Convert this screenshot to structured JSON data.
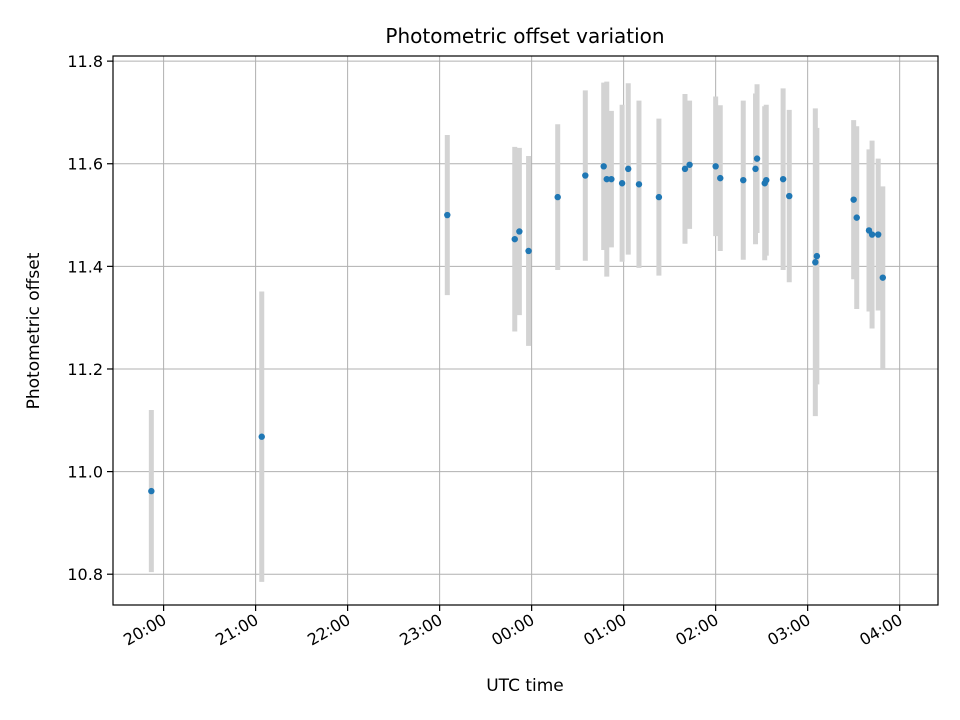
{
  "chart_data": {
    "type": "scatter",
    "title": "Photometric offset variation",
    "xlabel": "UTC time",
    "ylabel": "Photometric offset",
    "grid": true,
    "xlim": [
      "19:27",
      "04:25"
    ],
    "ylim": [
      10.74,
      11.81
    ],
    "xticks": [
      "20:00",
      "21:00",
      "22:00",
      "23:00",
      "00:00",
      "01:00",
      "02:00",
      "03:00",
      "04:00"
    ],
    "yticks": [
      "10.8",
      "11.0",
      "11.2",
      "11.4",
      "11.6",
      "11.8"
    ],
    "colors": {
      "point": "#1f77b4",
      "errorbar": "#d3d3d3",
      "grid": "#b0b0b0"
    },
    "points": [
      {
        "x": "19:52",
        "y": 10.962,
        "err": 0.158
      },
      {
        "x": "21:04",
        "y": 11.068,
        "err": 0.283
      },
      {
        "x": "23:05",
        "y": 11.5,
        "err": 0.156
      },
      {
        "x": "23:49",
        "y": 11.453,
        "err": 0.18
      },
      {
        "x": "23:52",
        "y": 11.468,
        "err": 0.163
      },
      {
        "x": "23:58",
        "y": 11.43,
        "err": 0.185
      },
      {
        "x": "00:17",
        "y": 11.535,
        "err": 0.142
      },
      {
        "x": "00:35",
        "y": 11.577,
        "err": 0.166
      },
      {
        "x": "00:47",
        "y": 11.595,
        "err": 0.163
      },
      {
        "x": "00:49",
        "y": 11.57,
        "err": 0.19
      },
      {
        "x": "00:52",
        "y": 11.57,
        "err": 0.133
      },
      {
        "x": "00:59",
        "y": 11.562,
        "err": 0.153
      },
      {
        "x": "01:03",
        "y": 11.59,
        "err": 0.167
      },
      {
        "x": "01:10",
        "y": 11.56,
        "err": 0.163
      },
      {
        "x": "01:23",
        "y": 11.535,
        "err": 0.153
      },
      {
        "x": "01:40",
        "y": 11.59,
        "err": 0.146
      },
      {
        "x": "01:43",
        "y": 11.598,
        "err": 0.125
      },
      {
        "x": "02:00",
        "y": 11.595,
        "err": 0.136
      },
      {
        "x": "02:03",
        "y": 11.572,
        "err": 0.142
      },
      {
        "x": "02:18",
        "y": 11.568,
        "err": 0.155
      },
      {
        "x": "02:26",
        "y": 11.59,
        "err": 0.147
      },
      {
        "x": "02:27",
        "y": 11.61,
        "err": 0.145
      },
      {
        "x": "02:32",
        "y": 11.562,
        "err": 0.15
      },
      {
        "x": "02:33",
        "y": 11.568,
        "err": 0.147
      },
      {
        "x": "02:44",
        "y": 11.57,
        "err": 0.177
      },
      {
        "x": "02:48",
        "y": 11.537,
        "err": 0.168
      },
      {
        "x": "03:05",
        "y": 11.408,
        "err": 0.3
      },
      {
        "x": "03:06",
        "y": 11.42,
        "err": 0.25
      },
      {
        "x": "03:30",
        "y": 11.53,
        "err": 0.155
      },
      {
        "x": "03:32",
        "y": 11.495,
        "err": 0.178
      },
      {
        "x": "03:40",
        "y": 11.47,
        "err": 0.158
      },
      {
        "x": "03:42",
        "y": 11.462,
        "err": 0.183
      },
      {
        "x": "03:46",
        "y": 11.462,
        "err": 0.148
      },
      {
        "x": "03:49",
        "y": 11.378,
        "err": 0.178
      }
    ]
  }
}
